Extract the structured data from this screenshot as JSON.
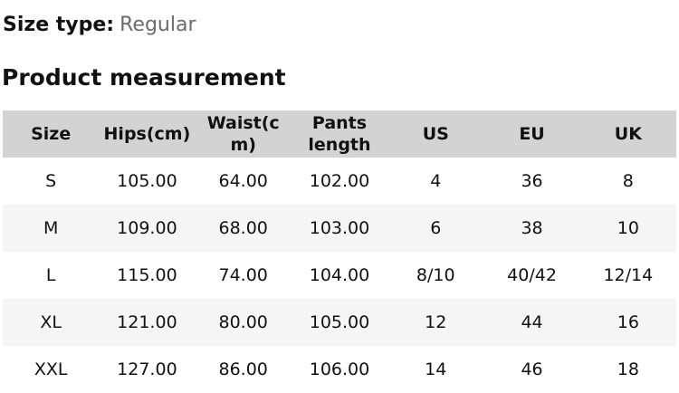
{
  "size_type": {
    "label": "Size type:",
    "value": "Regular"
  },
  "section_title": "Product measurement",
  "table": {
    "headers": [
      "Size",
      "Hips(cm)",
      "Waist(c\nm)",
      "Pants\nlength",
      "US",
      "EU",
      "UK"
    ],
    "rows": [
      [
        "S",
        "105.00",
        "64.00",
        "102.00",
        "4",
        "36",
        "8"
      ],
      [
        "M",
        "109.00",
        "68.00",
        "103.00",
        "6",
        "38",
        "10"
      ],
      [
        "L",
        "115.00",
        "74.00",
        "104.00",
        "8/10",
        "40/42",
        "12/14"
      ],
      [
        "XL",
        "121.00",
        "80.00",
        "105.00",
        "12",
        "44",
        "16"
      ],
      [
        "XXL",
        "127.00",
        "86.00",
        "106.00",
        "14",
        "46",
        "18"
      ]
    ]
  },
  "colors": {
    "header_bg": "#d3d3d3",
    "row_alt_bg": "#f5f5f5",
    "text": "#111111",
    "muted_text": "#6b6b6b"
  }
}
